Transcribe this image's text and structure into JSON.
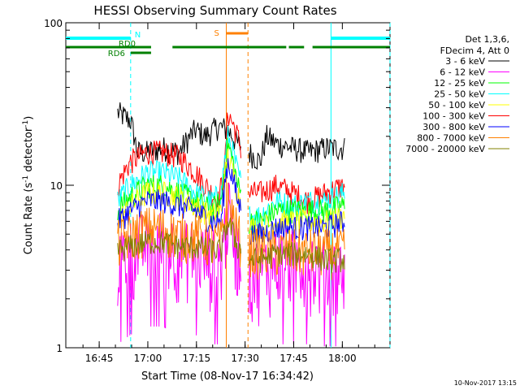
{
  "chart_data": {
    "type": "line",
    "title": "HESSI Observing Summary Count Rates",
    "xlabel": "Start Time (08-Nov-17 16:34:42)",
    "ylabel": "Count Rate (s",
    "ylabel_sup": "-1",
    "ylabel_tail": " detector",
    "ylabel_sup2": "-1",
    "ylabel_close": ")",
    "y_scale": "log",
    "ylim": [
      1,
      100
    ],
    "xlim_minutes": [
      0,
      100
    ],
    "x_ticks": [
      {
        "label": "16:45",
        "minute": 10.3
      },
      {
        "label": "17:00",
        "minute": 25.3
      },
      {
        "label": "17:15",
        "minute": 40.3
      },
      {
        "label": "17:30",
        "minute": 55.3
      },
      {
        "label": "17:45",
        "minute": 70.3
      },
      {
        "label": "18:00",
        "minute": 85.3
      }
    ],
    "y_ticks": [
      {
        "label": "1",
        "value": 1
      },
      {
        "label": "10",
        "value": 10
      },
      {
        "label": "100",
        "value": 100
      }
    ],
    "legend": {
      "position": "right",
      "header1": "Det 1,3,6,",
      "header2": "FDecim 4, Att 0",
      "entries": [
        {
          "label": "3 - 6 keV",
          "color": "#000000"
        },
        {
          "label": "6 - 12 keV",
          "color": "#ff00ff"
        },
        {
          "label": "12 - 25 keV",
          "color": "#00ff00"
        },
        {
          "label": "25 - 50 keV",
          "color": "#00ffff"
        },
        {
          "label": "50 - 100 keV",
          "color": "#ffff00"
        },
        {
          "label": "100 - 300 keV",
          "color": "#ff0000"
        },
        {
          "label": "300 - 800 keV",
          "color": "#0000ff"
        },
        {
          "label": "800 - 7000 keV",
          "color": "#ff8000"
        },
        {
          "label": "7000 - 20000 keV",
          "color": "#808000"
        }
      ]
    },
    "segments": [
      {
        "start": 16,
        "end": 54
      },
      {
        "start": 56.5,
        "end": 86
      }
    ],
    "series": [
      {
        "name": "3 - 6 keV",
        "color": "#000000",
        "x": [
          16,
          20,
          22,
          25,
          30,
          35,
          40,
          43,
          47,
          50,
          53,
          56.5,
          60,
          62,
          65,
          70,
          75,
          80,
          86
        ],
        "y": [
          28,
          25,
          16,
          16,
          17,
          16,
          22,
          20,
          23,
          22,
          18,
          16,
          14,
          20,
          18,
          17,
          16,
          17,
          17
        ]
      },
      {
        "name": "100 - 300 keV",
        "color": "#ff0000",
        "x": [
          16,
          20,
          25,
          30,
          35,
          40,
          43,
          45,
          47,
          49,
          50,
          53,
          56.5,
          60,
          65,
          70,
          75,
          80,
          86
        ],
        "y": [
          10,
          14,
          16,
          16,
          15,
          12,
          10,
          9,
          8,
          12,
          28,
          20,
          9,
          9,
          10,
          9,
          8,
          9,
          10
        ]
      },
      {
        "name": "25 - 50 keV",
        "color": "#00ffff",
        "x": [
          16,
          20,
          25,
          30,
          35,
          40,
          45,
          48,
          50,
          53,
          56.5,
          60,
          65,
          70,
          75,
          80,
          86
        ],
        "y": [
          8,
          10,
          12,
          12,
          11,
          9,
          8,
          9,
          20,
          12,
          6.5,
          6.5,
          8,
          7.5,
          8,
          8,
          9
        ]
      },
      {
        "name": "12 - 25 keV",
        "color": "#00ff00",
        "x": [
          16,
          20,
          25,
          30,
          35,
          40,
          45,
          48,
          50,
          53,
          56.5,
          60,
          65,
          70,
          75,
          80,
          86
        ],
        "y": [
          7,
          8.5,
          10,
          10,
          9,
          8,
          7,
          8,
          18,
          10,
          6,
          6,
          7,
          7,
          7,
          7,
          7.5
        ]
      },
      {
        "name": "50 - 100 keV",
        "color": "#ffff00",
        "x": [
          16,
          20,
          25,
          30,
          35,
          40,
          45,
          48,
          50,
          53,
          56.5,
          60,
          65,
          70,
          75,
          80,
          86
        ],
        "y": [
          6,
          7.5,
          9,
          9,
          8.5,
          7.5,
          6.5,
          7,
          15,
          9,
          5.5,
          5.5,
          6,
          6,
          6,
          6,
          6.5
        ]
      },
      {
        "name": "300 - 800 keV",
        "color": "#0000ff",
        "x": [
          16,
          20,
          25,
          30,
          35,
          40,
          45,
          48,
          50,
          53,
          56.5,
          60,
          65,
          70,
          75,
          80,
          86
        ],
        "y": [
          6,
          7,
          8,
          8,
          7.5,
          7,
          6,
          6,
          14,
          8,
          5,
          5,
          5.5,
          5.5,
          5.5,
          5.5,
          6
        ]
      },
      {
        "name": "6 - 12 keV",
        "color": "#ff00ff",
        "x": [
          16,
          20,
          25,
          30,
          35,
          40,
          45,
          48,
          50,
          53,
          56.5,
          60,
          65,
          70,
          75,
          80,
          86
        ],
        "y": [
          3.5,
          4,
          4.5,
          4.5,
          4,
          4,
          3.5,
          3.5,
          7,
          4,
          3,
          3,
          3.5,
          3.5,
          3.5,
          3,
          3
        ]
      },
      {
        "name": "800 - 7000 keV",
        "color": "#ff8000",
        "x": [
          16,
          20,
          25,
          30,
          35,
          40,
          45,
          48,
          50,
          53,
          56.5,
          60,
          65,
          70,
          75,
          80,
          86
        ],
        "y": [
          4.5,
          5,
          5.5,
          5.5,
          5,
          5,
          4.5,
          4.5,
          8,
          5,
          4,
          4,
          4,
          4,
          4,
          4,
          4
        ]
      },
      {
        "name": "7000 - 20000 keV",
        "color": "#808000",
        "x": [
          16,
          20,
          25,
          30,
          35,
          40,
          45,
          48,
          50,
          53,
          56.5,
          60,
          65,
          70,
          75,
          80,
          86
        ],
        "y": [
          4,
          4.2,
          4.5,
          4.5,
          4.2,
          4.2,
          4,
          4,
          6,
          4.2,
          3.5,
          3.5,
          3.8,
          3.8,
          3.8,
          3.5,
          3.5
        ]
      }
    ],
    "flag_bars": [
      {
        "label": "N",
        "color": "#00ffff",
        "row": "top",
        "spans": [
          [
            0,
            20
          ],
          [
            81.8,
            100
          ]
        ]
      },
      {
        "label": "RD0",
        "color": "#008000",
        "row": "middle",
        "spans": [
          [
            0,
            26.3
          ],
          [
            32.9,
            68
          ],
          [
            68.8,
            73.5
          ],
          [
            76.1,
            100
          ]
        ]
      },
      {
        "label": "RD6",
        "color": "#008000",
        "row": "lower",
        "spans": [
          [
            20,
            26.3
          ]
        ]
      },
      {
        "label": "S",
        "color": "#ff8000",
        "row": "saa",
        "spans": [
          [
            49.5,
            56.2
          ]
        ]
      }
    ],
    "vertical_lines": [
      {
        "minute": 20,
        "color": "#00ffff",
        "style": "dashed"
      },
      {
        "minute": 81.8,
        "color": "#00ffff",
        "style": "solid"
      },
      {
        "minute": 100,
        "color": "#00ffff",
        "style": "dashed"
      },
      {
        "minute": 49.5,
        "color": "#ff8000",
        "style": "solid"
      },
      {
        "minute": 56.2,
        "color": "#ff8000",
        "style": "dashed"
      }
    ],
    "footer": "10-Nov-2017 13:15"
  }
}
